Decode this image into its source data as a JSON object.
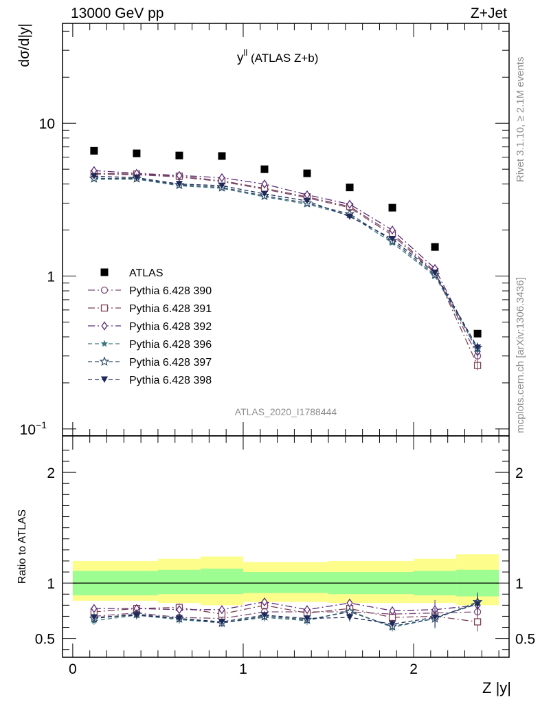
{
  "header": {
    "left": "13000 GeV pp",
    "right": "Z+Jet"
  },
  "side": {
    "rivet": "Rivet 3.1.10, ≥ 2.1M events",
    "mcplots": "mcplots.cern.ch [arXiv:1306.3436]"
  },
  "chart_data": [
    {
      "type": "scatter",
      "title_main": "y",
      "title_sup": "ll",
      "title_rest": " (ATLAS Z+b)",
      "watermark": "ATLAS_2020_I1788444",
      "ylabel": "dσ/d|y|",
      "xlabel": "Z |y|",
      "log_y": true,
      "ylim": [
        0.09,
        45
      ],
      "xlim": [
        -0.06,
        2.56
      ],
      "y_ticks": [
        {
          "value": 0.1,
          "base": "10",
          "exp": "−1"
        },
        {
          "value": 1,
          "base": "1",
          "exp": ""
        },
        {
          "value": 10,
          "base": "10",
          "exp": ""
        }
      ],
      "x": [
        0.125,
        0.375,
        0.625,
        0.875,
        1.125,
        1.375,
        1.625,
        1.875,
        2.125,
        2.375
      ],
      "series": [
        {
          "name": "ATLAS",
          "color": "#000000",
          "marker": "square-filled",
          "values": [
            6.6,
            6.35,
            6.15,
            6.1,
            5.0,
            4.7,
            3.8,
            2.8,
            1.55,
            0.42
          ]
        },
        {
          "name": "Pythia 6.428 390",
          "color": "#7b4a72",
          "marker": "circle-open",
          "values": [
            4.65,
            4.6,
            4.45,
            4.15,
            3.7,
            3.25,
            2.8,
            1.85,
            1.05,
            0.3
          ]
        },
        {
          "name": "Pythia 6.428 391",
          "color": "#7b4252",
          "marker": "square-open",
          "values": [
            4.7,
            4.65,
            4.5,
            4.2,
            3.75,
            3.3,
            2.85,
            1.9,
            1.07,
            0.26
          ]
        },
        {
          "name": "Pythia 6.428 392",
          "color": "#5a2a78",
          "marker": "diamond-open",
          "values": [
            4.9,
            4.7,
            4.55,
            4.4,
            4.0,
            3.4,
            2.95,
            2.0,
            1.12,
            0.32
          ]
        },
        {
          "name": "Pythia 6.428 396",
          "color": "#3d7880",
          "marker": "star-filled",
          "values": [
            4.3,
            4.3,
            3.9,
            3.75,
            3.3,
            2.95,
            2.5,
            1.65,
            1.0,
            0.33
          ]
        },
        {
          "name": "Pythia 6.428 397",
          "color": "#2c4a6a",
          "marker": "star-open",
          "values": [
            4.35,
            4.35,
            3.95,
            3.8,
            3.35,
            3.0,
            2.55,
            1.7,
            1.02,
            0.34
          ]
        },
        {
          "name": "Pythia 6.428 398",
          "color": "#1e2a5a",
          "marker": "triangle-down-filled",
          "values": [
            4.5,
            4.4,
            4.0,
            3.9,
            3.45,
            3.1,
            2.45,
            1.75,
            1.05,
            0.34
          ]
        }
      ]
    },
    {
      "type": "scatter",
      "ylabel": "Ratio to ATLAS",
      "ylim": [
        0.33,
        2.33
      ],
      "xlim": [
        -0.06,
        2.56
      ],
      "y_ticks": [
        0.5,
        1,
        2
      ],
      "x_ticks": [
        0,
        1,
        2
      ],
      "reference_line": 1,
      "band_edges": [
        0,
        0.25,
        0.5,
        0.75,
        1.0,
        1.25,
        1.5,
        1.75,
        2.0,
        2.25,
        2.5
      ],
      "band_green": [
        [
          0.89,
          1.11
        ],
        [
          0.89,
          1.11
        ],
        [
          0.9,
          1.12
        ],
        [
          0.9,
          1.13
        ],
        [
          0.91,
          1.1
        ],
        [
          0.91,
          1.1
        ],
        [
          0.9,
          1.1
        ],
        [
          0.9,
          1.1
        ],
        [
          0.89,
          1.11
        ],
        [
          0.88,
          1.12
        ]
      ],
      "band_yellow": [
        [
          0.84,
          1.2
        ],
        [
          0.84,
          1.2
        ],
        [
          0.82,
          1.22
        ],
        [
          0.8,
          1.24
        ],
        [
          0.83,
          1.19
        ],
        [
          0.83,
          1.19
        ],
        [
          0.82,
          1.2
        ],
        [
          0.82,
          1.2
        ],
        [
          0.82,
          1.22
        ],
        [
          0.8,
          1.26
        ]
      ],
      "x": [
        0.125,
        0.375,
        0.625,
        0.875,
        1.125,
        1.375,
        1.625,
        1.875,
        2.125,
        2.375
      ],
      "series": [
        {
          "name": "Pythia 6.428 390",
          "values": [
            0.7,
            0.73,
            0.69,
            0.68,
            0.74,
            0.74,
            0.74,
            0.72,
            0.73,
            0.74
          ]
        },
        {
          "name": "Pythia 6.428 391",
          "values": [
            0.74,
            0.77,
            0.78,
            0.72,
            0.8,
            0.73,
            0.77,
            0.69,
            0.7,
            0.65
          ]
        },
        {
          "name": "Pythia 6.428 392",
          "values": [
            0.77,
            0.77,
            0.76,
            0.76,
            0.83,
            0.76,
            0.82,
            0.75,
            0.76,
            0.8
          ]
        },
        {
          "name": "Pythia 6.428 396",
          "values": [
            0.66,
            0.71,
            0.67,
            0.64,
            0.69,
            0.66,
            0.75,
            0.6,
            0.68,
            0.82
          ]
        },
        {
          "name": "Pythia 6.428 397",
          "values": [
            0.68,
            0.72,
            0.68,
            0.64,
            0.7,
            0.67,
            0.74,
            0.61,
            0.68,
            0.83
          ]
        },
        {
          "name": "Pythia 6.428 398",
          "values": [
            0.69,
            0.71,
            0.68,
            0.65,
            0.71,
            0.68,
            0.69,
            0.63,
            0.69,
            0.81
          ]
        }
      ]
    }
  ]
}
